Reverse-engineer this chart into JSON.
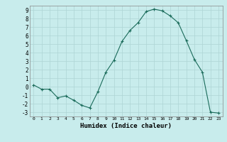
{
  "x": [
    0,
    1,
    2,
    3,
    4,
    5,
    6,
    7,
    8,
    9,
    10,
    11,
    12,
    13,
    14,
    15,
    16,
    17,
    18,
    19,
    20,
    21,
    22,
    23
  ],
  "y": [
    0.2,
    -0.3,
    -0.3,
    -1.3,
    -1.1,
    -1.6,
    -2.2,
    -2.5,
    -0.6,
    1.7,
    3.1,
    5.3,
    6.6,
    7.5,
    8.8,
    9.1,
    8.9,
    8.3,
    7.5,
    5.4,
    3.2,
    1.7,
    -3.0,
    -3.1
  ],
  "title": "",
  "xlabel": "Humidex (Indice chaleur)",
  "ylabel": "",
  "line_color": "#1a6b5a",
  "marker": "+",
  "bg_color": "#c8ecec",
  "grid_color": "#aed4d4",
  "ylim": [
    -3.5,
    9.5
  ],
  "xlim": [
    -0.5,
    23.5
  ],
  "yticks": [
    -3,
    -2,
    -1,
    0,
    1,
    2,
    3,
    4,
    5,
    6,
    7,
    8,
    9
  ],
  "xticks": [
    0,
    1,
    2,
    3,
    4,
    5,
    6,
    7,
    8,
    9,
    10,
    11,
    12,
    13,
    14,
    15,
    16,
    17,
    18,
    19,
    20,
    21,
    22,
    23
  ]
}
